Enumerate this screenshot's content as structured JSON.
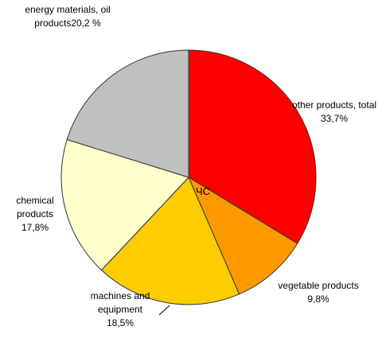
{
  "chart_data": {
    "type": "pie",
    "categories": [
      "other products, total",
      "vegetable products",
      "machines and equipment",
      "chemical products",
      "energy materials, oil products"
    ],
    "values": [
      33.7,
      9.8,
      18.5,
      17.8,
      20.2
    ],
    "value_labels": [
      "33,7%",
      "9,8%",
      "18,5%",
      "17,8%",
      "20,2 %"
    ],
    "colors": [
      "#ff0000",
      "#ff9900",
      "#ffcc00",
      "#ffffcc",
      "#c0c0c0"
    ],
    "annotation": "ЧС"
  }
}
